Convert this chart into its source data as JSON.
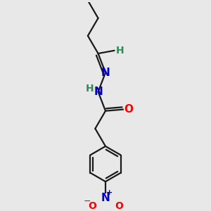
{
  "bg_color": "#e8e8e8",
  "bond_color": "#1a1a1a",
  "n_color": "#0000cd",
  "o_color": "#ff0000",
  "h_color": "#2e8b57",
  "line_width": 1.6,
  "font_size": 10,
  "fig_size": [
    3.0,
    3.0
  ],
  "dpi": 100,
  "xlim": [
    -0.5,
    3.5
  ],
  "ylim": [
    -1.0,
    5.5
  ]
}
